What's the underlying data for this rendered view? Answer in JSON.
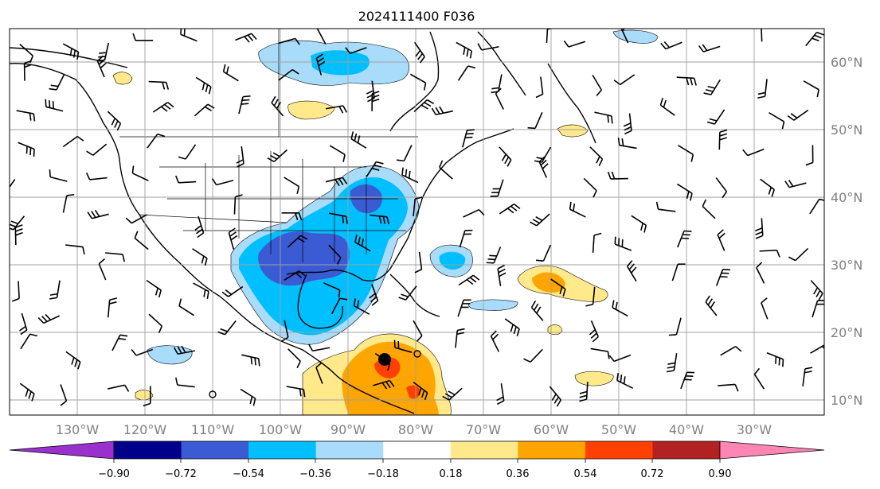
{
  "title": "2024111400 F036",
  "map": {
    "lon_labels": [
      "130°W",
      "120°W",
      "110°W",
      "100°W",
      "90°W",
      "80°W",
      "70°W",
      "60°W",
      "50°W",
      "40°W",
      "30°W"
    ],
    "lat_labels": [
      "60°N",
      "50°N",
      "40°N",
      "30°N",
      "20°N",
      "10°N"
    ],
    "grid": true
  },
  "colorbar": {
    "tick_labels": [
      "−0.90",
      "−0.72",
      "−0.54",
      "−0.36",
      "−0.18",
      "0.18",
      "0.36",
      "0.54",
      "0.72",
      "0.90"
    ],
    "colors": {
      "under": "#9932cc",
      "bins": [
        "#00008b",
        "#3a5bd3",
        "#00bfff",
        "#a8dcfa",
        "#ffffff",
        "#ffe98a",
        "#ffa500",
        "#ff4000",
        "#b22222"
      ],
      "over": "#ff85b4"
    }
  },
  "colors": {
    "light_blue": "#a8dcfa",
    "blue": "#00bfff",
    "royal": "#3a5bd3",
    "light_yellow": "#ffe98a",
    "orange": "#ffa500",
    "red": "#ff4000"
  },
  "storm_marker": "black-dot"
}
